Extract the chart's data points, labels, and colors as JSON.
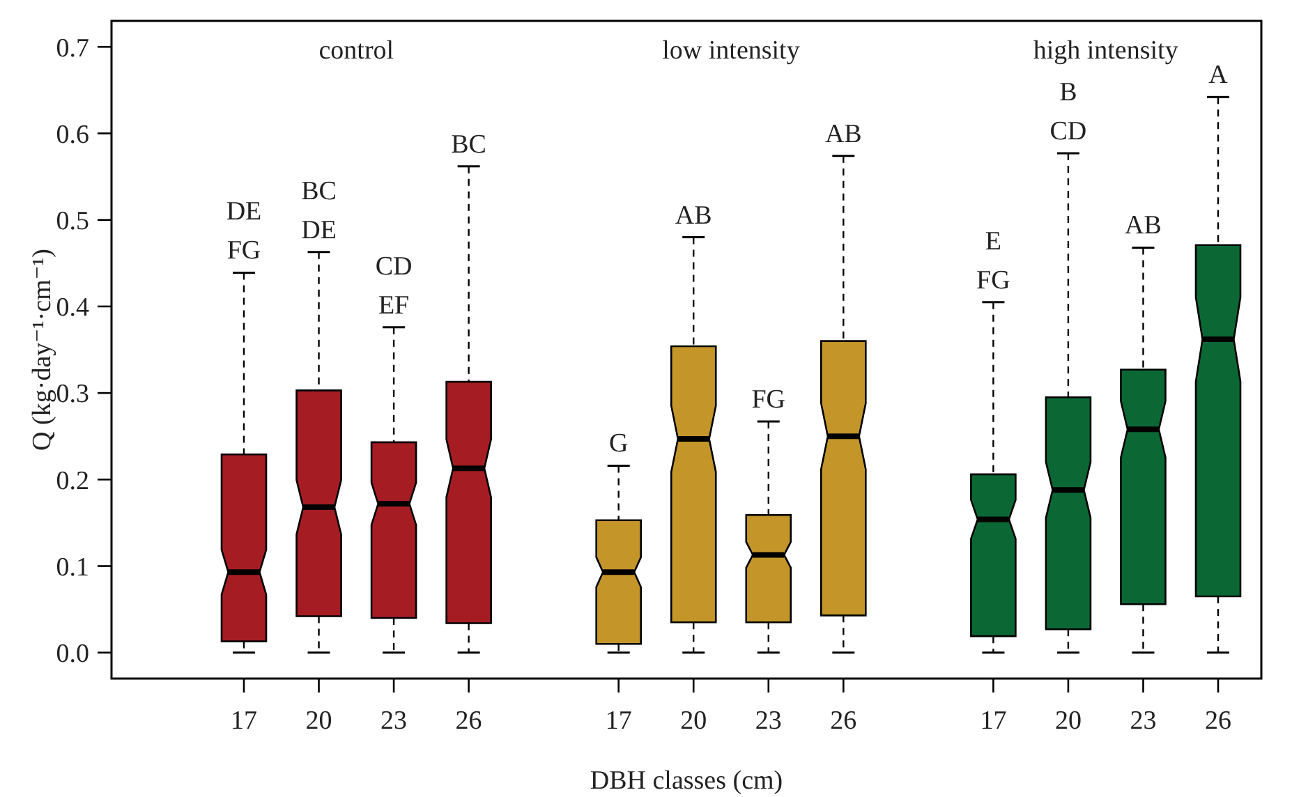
{
  "chart_data": {
    "type": "box",
    "xlabel": "DBH classes (cm)",
    "ylabel": "Q (kg·day⁻¹·cm⁻¹)",
    "categories": [
      "17",
      "20",
      "23",
      "26",
      null,
      "17",
      "20",
      "23",
      "26",
      null,
      "17",
      "20",
      "23",
      "26"
    ],
    "colors": [
      "#a51d23",
      "#a51d23",
      "#a51d23",
      "#a51d23",
      null,
      "#c4962a",
      "#c4962a",
      "#c4962a",
      "#c4962a",
      null,
      "#0b6835",
      "#0b6835",
      "#0b6835",
      "#0b6835"
    ],
    "boxes": [
      {
        "low": 0,
        "q1": 0.013,
        "median": 0.093,
        "q3": 0.229,
        "high": 0.439
      },
      {
        "low": 0,
        "q1": 0.042,
        "median": 0.168,
        "q3": 0.303,
        "high": 0.463
      },
      {
        "low": 0,
        "q1": 0.04,
        "median": 0.172,
        "q3": 0.243,
        "high": 0.376
      },
      {
        "low": 0,
        "q1": 0.034,
        "median": 0.213,
        "q3": 0.313,
        "high": 0.562
      },
      null,
      {
        "low": 0,
        "q1": 0.01,
        "median": 0.093,
        "q3": 0.153,
        "high": 0.216
      },
      {
        "low": 0,
        "q1": 0.035,
        "median": 0.247,
        "q3": 0.354,
        "high": 0.48
      },
      {
        "low": 0,
        "q1": 0.035,
        "median": 0.113,
        "q3": 0.159,
        "high": 0.267
      },
      {
        "low": 0,
        "q1": 0.043,
        "median": 0.25,
        "q3": 0.36,
        "high": 0.574
      },
      null,
      {
        "low": 0,
        "q1": 0.019,
        "median": 0.154,
        "q3": 0.206,
        "high": 0.405
      },
      {
        "low": 0,
        "q1": 0.027,
        "median": 0.188,
        "q3": 0.295,
        "high": 0.577
      },
      {
        "low": 0,
        "q1": 0.056,
        "median": 0.258,
        "q3": 0.327,
        "high": 0.468
      },
      {
        "low": 0,
        "q1": 0.065,
        "median": 0.362,
        "q3": 0.471,
        "high": 0.642
      }
    ],
    "ylim": [
      -0.03,
      0.73
    ],
    "yticks": [
      {
        "value": 0,
        "label": "0.0"
      },
      0.1,
      0.2,
      0.3,
      0.4,
      0.5,
      0.6,
      0.7
    ],
    "annotations": [
      "control",
      "low intensity",
      "high intensity",
      {
        "text": "DE\nFG",
        "y": 0.439
      },
      {
        "text": "BC\nDE",
        "y": 0.463
      },
      {
        "text": "CD\nEF",
        "y": 0.376
      },
      {
        "text": "BC",
        "y": 0.562
      },
      {
        "text": "G",
        "y": 0.216
      },
      {
        "text": "AB",
        "y": 0.48
      },
      {
        "text": "FG",
        "y": 0.267
      },
      {
        "text": "AB",
        "y": 0.574
      },
      {
        "text": "E\nFG",
        "y": 0.405
      },
      {
        "text": "B\nCD",
        "y": 0.577
      },
      {
        "text": "AB",
        "y": 0.468
      },
      {
        "text": "A",
        "y": 0.642
      }
    ]
  }
}
